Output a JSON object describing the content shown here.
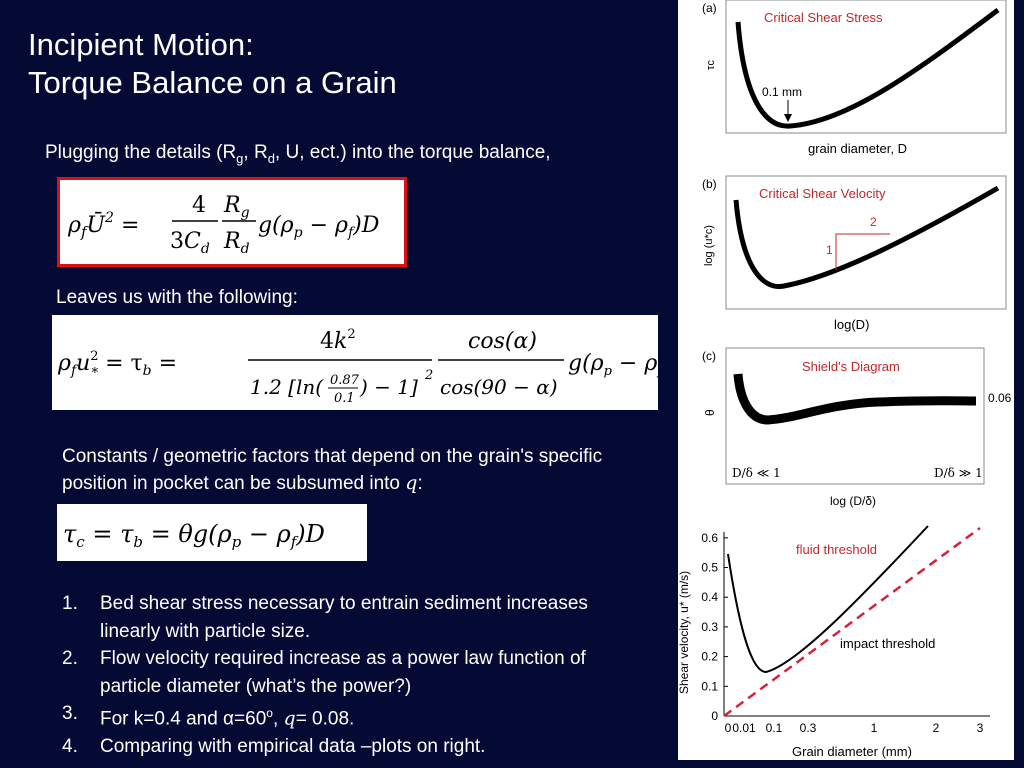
{
  "title_line1": "Incipient Motion:",
  "title_line2": "Torque Balance on a Grain",
  "intro": {
    "prefix": "Plugging the details (R",
    "sub_g": "g",
    "sep1": ", R",
    "sub_d": "d",
    "suffix": ", U, ect.) into the torque balance,"
  },
  "lead2": "Leaves us with the following:",
  "constants_text": "Constants / geometric factors that depend on the grain's specific position in pocket can be subsumed into",
  "constants_var": "q",
  "constants_colon": ":",
  "points": [
    {
      "num": "1.",
      "text": "Bed shear stress necessary to entrain sediment increases linearly with particle size."
    },
    {
      "num": "2.",
      "text": "Flow velocity required increase as a power law function of particle diameter (what’s the power?)"
    },
    {
      "num": "3.",
      "pre": "For k=0.4 and ",
      "alpha": "α",
      "eq60": "=60",
      "deg": "o",
      "comma": ", ",
      "q": "q",
      "rest": "= 0.08."
    },
    {
      "num": "4.",
      "text": "Comparing with empirical data –plots on right."
    }
  ],
  "panels": {
    "a": {
      "tag": "(a)",
      "title": "Critical Shear Stress",
      "ylabel": "τc",
      "xlabel": "grain diameter, D",
      "annotation": "0.1 mm"
    },
    "b": {
      "tag": "(b)",
      "title": "Critical Shear Velocity",
      "ylabel": "log (u*c)",
      "xlabel": "log(D)",
      "slope_run": "2",
      "slope_rise": "1"
    },
    "c": {
      "tag": "(c)",
      "title": "Shield's Diagram",
      "ylabel": "θ",
      "xlabel": "log (D/δ)",
      "left_label": "D/δ ≪ 1",
      "right_label": "D/δ ≫ 1",
      "value_label": "0.06"
    },
    "d": {
      "ylabel": "Shear velocity, u* (m/s)",
      "xlabel": "Grain diameter (mm)",
      "fluid_label": "fluid threshold",
      "impact_label": "impact threshold",
      "yticks": [
        "0",
        "0.1",
        "0.2",
        "0.3",
        "0.4",
        "0.5",
        "0.6"
      ],
      "xticks": [
        "0",
        "0.01",
        "0.1",
        "0.3",
        "1",
        "2",
        "3"
      ]
    }
  },
  "colors": {
    "background": "#050a35",
    "accent_red": "#c0282d"
  }
}
